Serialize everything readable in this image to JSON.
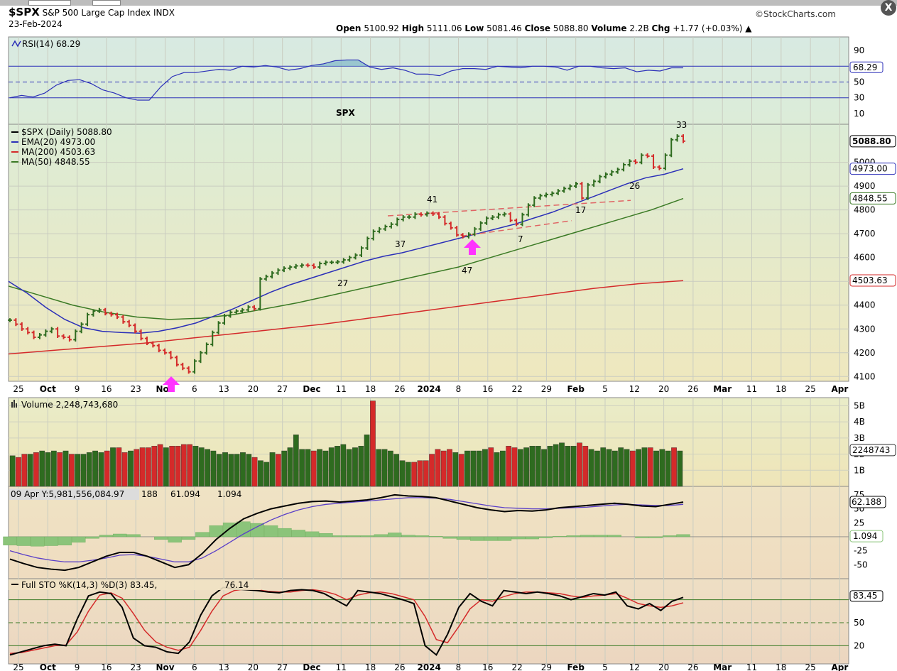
{
  "header": {
    "symbol": "$SPX",
    "name": "S&P 500 Large Cap Index",
    "exchange": "INDX",
    "date": "23-Feb-2024",
    "brand": "©StockCharts.com",
    "open_label": "Open",
    "open": "5100.92",
    "high_label": "High",
    "high": "5111.06",
    "low_label": "Low",
    "low": "5081.46",
    "close_label": "Close",
    "close": "5088.80",
    "volume_label": "Volume",
    "volume": "2.2B",
    "chg_label": "Chg",
    "chg": "+1.77 (+0.03%)",
    "close_button": "X"
  },
  "colors": {
    "up": "#2e6b1f",
    "down": "#d42a2a",
    "ema20": "#2b2fb8",
    "ma200": "#d42a2a",
    "ma50": "#3a7a24",
    "annotation_red": "#d42a2a",
    "annotation_blue": "#4a78c8",
    "arrow": "#ff33ff",
    "rsi_line": "#2b2fb8",
    "macd_line": "#000000",
    "signal_line": "#5a3fc8",
    "histogram": "#8bc47a",
    "sto_k": "#000000",
    "sto_d": "#d42a2a"
  },
  "chart_data": [
    {
      "type": "line",
      "panel": "RSI",
      "legend": "RSI(14) 68.29",
      "ylim": [
        0,
        100
      ],
      "yticks": [
        "90",
        "50",
        "30",
        "10"
      ],
      "levels": [
        70,
        50,
        30
      ],
      "last_tag": "68.29",
      "series": [
        {
          "name": "RSI(14)",
          "values": [
            30,
            33,
            31,
            36,
            46,
            52,
            53,
            48,
            40,
            36,
            30,
            27,
            27,
            44,
            57,
            62,
            62,
            64,
            66,
            65,
            70,
            69,
            71,
            69,
            65,
            67,
            71,
            73,
            77,
            78,
            78,
            69,
            66,
            68,
            65,
            60,
            60,
            58,
            64,
            67,
            67,
            66,
            70,
            69,
            68,
            70,
            70,
            69,
            65,
            70,
            70,
            68,
            67,
            68,
            63,
            65,
            64,
            68,
            68
          ]
        }
      ]
    },
    {
      "type": "candlestick",
      "panel": "Price",
      "title_text": "SPX",
      "legend": [
        "$SPX (Daily) 5088.80",
        "EMA(20) 4973.00",
        "MA(200) 4503.63",
        "MA(50) 4848.55"
      ],
      "ylim": [
        4080,
        5160
      ],
      "yticks": [
        "5000",
        "4900",
        "4800",
        "4700",
        "4600",
        "4500",
        "4400",
        "4300",
        "4200",
        "4100"
      ],
      "tags": [
        "5088.80",
        "4973.00",
        "4848.55",
        "4503.63"
      ],
      "x_labels": [
        "25",
        "Oct",
        "9",
        "16",
        "23",
        "Nov",
        "6",
        "13",
        "20",
        "27",
        "Dec",
        "11",
        "18",
        "26",
        "2024",
        "8",
        "16",
        "22",
        "29",
        "Feb",
        "5",
        "12",
        "20",
        "26",
        "Mar",
        "11",
        "18",
        "25",
        "Apr"
      ],
      "closes": [
        4337,
        4320,
        4300,
        4285,
        4265,
        4275,
        4290,
        4300,
        4270,
        4265,
        4255,
        4290,
        4320,
        4360,
        4375,
        4380,
        4365,
        4360,
        4350,
        4330,
        4315,
        4290,
        4260,
        4240,
        4230,
        4210,
        4200,
        4180,
        4150,
        4135,
        4120,
        4165,
        4200,
        4235,
        4285,
        4325,
        4355,
        4370,
        4375,
        4380,
        4392,
        4385,
        4510,
        4520,
        4535,
        4547,
        4555,
        4560,
        4565,
        4568,
        4567,
        4560,
        4575,
        4580,
        4580,
        4582,
        4590,
        4600,
        4610,
        4640,
        4680,
        4710,
        4720,
        4730,
        4740,
        4760,
        4770,
        4770,
        4782,
        4780,
        4786,
        4783,
        4770,
        4743,
        4725,
        4695,
        4688,
        4698,
        4720,
        4745,
        4765,
        4770,
        4780,
        4783,
        4756,
        4740,
        4780,
        4820,
        4850,
        4860,
        4865,
        4870,
        4880,
        4890,
        4900,
        4910,
        4850,
        4905,
        4920,
        4940,
        4950,
        4960,
        4970,
        4990,
        5005,
        5000,
        5030,
        5026,
        4980,
        4975,
        5030,
        5095,
        5110,
        5089
      ],
      "ema20": [
        4500,
        4450,
        4390,
        4340,
        4305,
        4290,
        4285,
        4282,
        4290,
        4305,
        4325,
        4355,
        4385,
        4420,
        4455,
        4485,
        4510,
        4535,
        4560,
        4585,
        4605,
        4620,
        4640,
        4660,
        4680,
        4700,
        4720,
        4740,
        4765,
        4790,
        4820,
        4850,
        4880,
        4910,
        4935,
        4950,
        4973
      ],
      "ma50": [
        4480,
        4440,
        4400,
        4370,
        4350,
        4340,
        4345,
        4360,
        4385,
        4410,
        4440,
        4470,
        4500,
        4530,
        4560,
        4600,
        4640,
        4680,
        4720,
        4760,
        4800,
        4848
      ],
      "ma200": [
        4195,
        4210,
        4225,
        4240,
        4260,
        4280,
        4300,
        4320,
        4345,
        4370,
        4395,
        4420,
        4445,
        4470,
        4490,
        4503
      ],
      "annotations": [
        {
          "text": "27",
          "color": "red"
        },
        {
          "text": "37",
          "color": "red"
        },
        {
          "text": "41",
          "color": "red"
        },
        {
          "text": "47",
          "color": "red"
        },
        {
          "text": "7",
          "color": "blue"
        },
        {
          "text": "17",
          "color": "blue"
        },
        {
          "text": "26",
          "color": "blue"
        },
        {
          "text": "33",
          "color": "blue"
        }
      ]
    },
    {
      "type": "bar",
      "panel": "Volume",
      "legend": "Volume 2,248,743,680",
      "yticks": [
        "5B",
        "4B",
        "3B",
        "2B",
        "1B"
      ],
      "last_tag": "2248743",
      "ylim": [
        0,
        5.5
      ],
      "values": [
        1.9,
        1.8,
        2.0,
        2.0,
        2.1,
        2.2,
        2.1,
        2.2,
        2.1,
        2.2,
        2.0,
        2.0,
        2.0,
        2.1,
        2.2,
        2.1,
        2.2,
        2.4,
        2.4,
        2.1,
        2.2,
        2.3,
        2.4,
        2.4,
        2.5,
        2.6,
        2.4,
        2.5,
        2.5,
        2.6,
        2.6,
        2.5,
        2.4,
        2.3,
        2.2,
        2.0,
        2.1,
        2.0,
        2.0,
        2.1,
        2.0,
        1.8,
        1.6,
        1.5,
        2.1,
        2.0,
        2.2,
        2.4,
        3.2,
        2.3,
        2.3,
        2.2,
        2.3,
        2.2,
        2.4,
        2.5,
        2.6,
        2.3,
        2.4,
        2.5,
        3.2,
        5.3,
        2.3,
        2.3,
        2.2,
        2.0,
        1.6,
        1.5,
        1.5,
        1.6,
        1.6,
        2.0,
        2.3,
        2.2,
        2.3,
        2.1,
        2.0,
        2.2,
        2.2,
        2.2,
        2.3,
        2.4,
        2.1,
        2.2,
        2.5,
        2.4,
        2.3,
        2.4,
        2.5,
        2.5,
        2.3,
        2.5,
        2.6,
        2.7,
        2.5,
        2.5,
        2.7,
        2.5,
        2.3,
        2.2,
        2.4,
        2.3,
        2.2,
        2.4,
        2.3,
        2.2,
        2.3,
        2.4,
        2.4,
        2.2,
        2.3,
        2.2,
        2.4,
        2.2
      ],
      "up": [
        1,
        0,
        0,
        1,
        0,
        1,
        1,
        1,
        0,
        1,
        0,
        1,
        1,
        1,
        1,
        1,
        0,
        1,
        0,
        0,
        1,
        0,
        0,
        0,
        0,
        0,
        1,
        0,
        0,
        0,
        0,
        1,
        1,
        1,
        1,
        1,
        1,
        1,
        1,
        1,
        1,
        0,
        1,
        1,
        1,
        0,
        1,
        1,
        1,
        1,
        1,
        0,
        1,
        1,
        1,
        1,
        1,
        1,
        1,
        1,
        1,
        0,
        1,
        1,
        1,
        1,
        1,
        1,
        0,
        0,
        0,
        0,
        0,
        0,
        0,
        1,
        0,
        1,
        1,
        1,
        1,
        0,
        1,
        1,
        0,
        0,
        1,
        1,
        1,
        1,
        1,
        1,
        1,
        1,
        1,
        1,
        0,
        0,
        1,
        1,
        1,
        1,
        1,
        1,
        1,
        0,
        1,
        1,
        0,
        1,
        1,
        1,
        0,
        1
      ]
    },
    {
      "type": "line",
      "panel": "MACD",
      "legend_prefix": "09 Apr Y:5,981,556,084.97",
      "legend_values": [
        "188",
        "61.094",
        "1.094"
      ],
      "yticks": [
        "75",
        "50",
        "25",
        "-25",
        "-50"
      ],
      "tags": [
        "62.188",
        "1.094"
      ],
      "ylim": [
        -70,
        80
      ],
      "series": [
        {
          "name": "MACD",
          "values": [
            -40,
            -48,
            -55,
            -58,
            -60,
            -55,
            -45,
            -35,
            -28,
            -28,
            -35,
            -45,
            -55,
            -50,
            -30,
            -5,
            15,
            32,
            42,
            50,
            55,
            60,
            63,
            64,
            62,
            64,
            66,
            70,
            75,
            73,
            72,
            70,
            64,
            58,
            52,
            48,
            45,
            47,
            46,
            48,
            52,
            54,
            56,
            58,
            60,
            58,
            55,
            54,
            58,
            62
          ]
        },
        {
          "name": "Signal",
          "values": [
            -25,
            -32,
            -38,
            -42,
            -45,
            -45,
            -42,
            -38,
            -33,
            -32,
            -35,
            -40,
            -45,
            -45,
            -38,
            -25,
            -10,
            5,
            18,
            30,
            40,
            48,
            54,
            58,
            60,
            62,
            64,
            66,
            68,
            70,
            70,
            69,
            67,
            63,
            59,
            55,
            52,
            51,
            50,
            50,
            51,
            52,
            53,
            55,
            57,
            58,
            57,
            56,
            56,
            58
          ]
        },
        {
          "name": "Histogram",
          "values": [
            -15,
            -16,
            -17,
            -16,
            -15,
            -10,
            -3,
            3,
            5,
            4,
            0,
            -5,
            -10,
            -5,
            8,
            20,
            25,
            27,
            24,
            20,
            15,
            12,
            9,
            6,
            2,
            2,
            2,
            4,
            7,
            3,
            2,
            1,
            -3,
            -5,
            -7,
            -7,
            -7,
            -4,
            -4,
            -2,
            1,
            2,
            3,
            3,
            3,
            0,
            -2,
            -2,
            2,
            4
          ]
        }
      ]
    },
    {
      "type": "line",
      "panel": "Full STO",
      "legend": "Full STO %K(14,3) %D(3) 83.45,",
      "legend_d": "76.14",
      "yticks": [
        "80",
        "50",
        "20"
      ],
      "tags": [
        "83.45",
        "76.14"
      ],
      "ylim": [
        0,
        100
      ],
      "levels": [
        80,
        50,
        20
      ],
      "series": [
        {
          "name": "%K",
          "values": [
            8,
            12,
            16,
            20,
            22,
            20,
            55,
            85,
            90,
            88,
            70,
            30,
            20,
            18,
            12,
            10,
            25,
            60,
            85,
            96,
            94,
            93,
            92,
            90,
            89,
            92,
            93,
            92,
            88,
            80,
            72,
            92,
            90,
            88,
            84,
            80,
            75,
            20,
            8,
            35,
            70,
            88,
            78,
            72,
            92,
            90,
            88,
            90,
            88,
            85,
            80,
            84,
            88,
            86,
            90,
            72,
            68,
            75,
            66,
            78,
            83
          ]
        },
        {
          "name": "%D",
          "values": [
            10,
            11,
            14,
            17,
            20,
            21,
            38,
            65,
            86,
            89,
            82,
            62,
            40,
            25,
            18,
            14,
            18,
            40,
            65,
            85,
            92,
            94,
            93,
            91,
            90,
            90,
            92,
            93,
            91,
            87,
            80,
            86,
            89,
            90,
            88,
            84,
            80,
            58,
            28,
            24,
            45,
            68,
            80,
            78,
            84,
            88,
            90,
            90,
            89,
            88,
            85,
            83,
            85,
            86,
            88,
            82,
            75,
            72,
            70,
            72,
            76
          ]
        }
      ]
    }
  ]
}
